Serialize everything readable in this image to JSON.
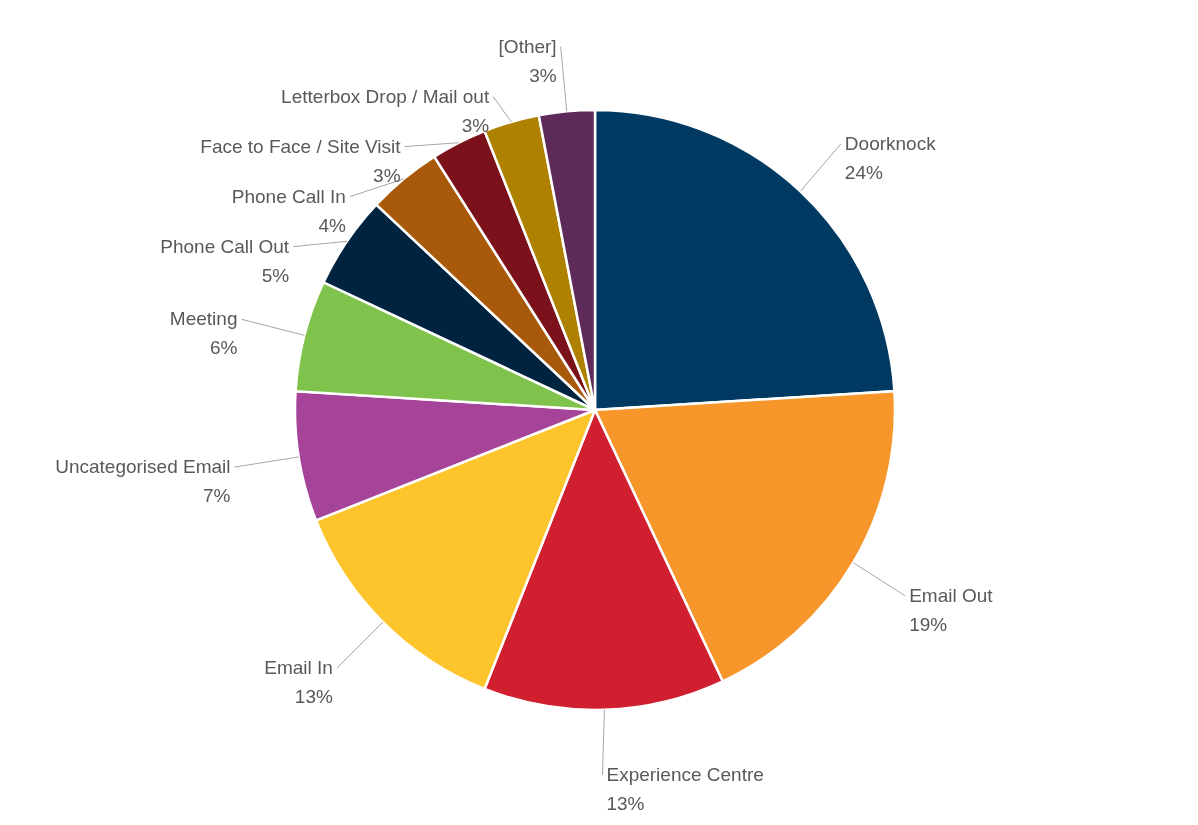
{
  "chart_data": {
    "type": "pie",
    "categories": [
      "Doorknock",
      "Email Out",
      "Experience Centre",
      "Email In",
      "Uncategorised Email",
      "Meeting",
      "Phone Call Out",
      "Phone Call In",
      "Face to Face / Site Visit",
      "Letterbox Drop / Mail out",
      "[Other]"
    ],
    "values": [
      24,
      19,
      13,
      13,
      7,
      6,
      5,
      4,
      3,
      3,
      3
    ],
    "value_labels": [
      "24%",
      "19%",
      "13%",
      "13%",
      "7%",
      "6%",
      "5%",
      "4%",
      "3%",
      "3%",
      "3%"
    ],
    "colors": [
      "#003a63",
      "#f6962b",
      "#d0202f",
      "#fec42c",
      "#a54499",
      "#80c34c",
      "#00233f",
      "#a85a0a",
      "#7b111b",
      "#ae8200",
      "#5e2a5a"
    ]
  }
}
